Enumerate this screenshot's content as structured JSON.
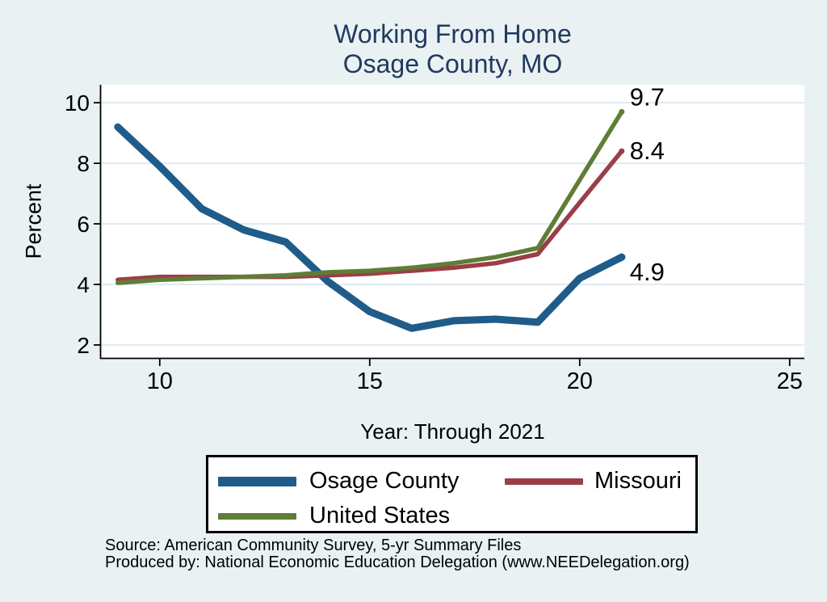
{
  "chart_data": {
    "type": "line",
    "title_line1": "Working From Home",
    "title_line2": "Osage County, MO",
    "xlabel": "Year: Through 2021",
    "ylabel": "Percent",
    "x": [
      9,
      10,
      11,
      12,
      13,
      14,
      15,
      16,
      17,
      18,
      19,
      20,
      21
    ],
    "series": [
      {
        "name": "Osage County",
        "color": "#1f5c8a",
        "stroke_width": 9,
        "end_label": "4.9",
        "values": [
          9.2,
          7.9,
          6.5,
          5.8,
          5.4,
          4.1,
          3.1,
          2.55,
          2.8,
          2.85,
          2.75,
          4.2,
          4.9
        ]
      },
      {
        "name": "Missouri",
        "color": "#9a3e48",
        "stroke_width": 5.5,
        "end_label": "8.4",
        "values": [
          4.15,
          4.25,
          4.25,
          4.25,
          4.25,
          4.3,
          4.35,
          4.45,
          4.55,
          4.7,
          5.0,
          6.7,
          8.4
        ]
      },
      {
        "name": "United States",
        "color": "#5f7d36",
        "stroke_width": 5.5,
        "end_label": "9.7",
        "values": [
          4.05,
          4.15,
          4.2,
          4.25,
          4.3,
          4.4,
          4.45,
          4.55,
          4.7,
          4.9,
          5.2,
          7.45,
          9.7
        ]
      }
    ],
    "x_ticks": [
      "10",
      "15",
      "20",
      "25"
    ],
    "x_tick_values": [
      10,
      15,
      20,
      25
    ],
    "y_ticks": [
      "2",
      "4",
      "6",
      "8",
      "10"
    ],
    "y_tick_values": [
      2,
      4,
      6,
      8,
      10
    ],
    "xlim": [
      8.6,
      25.35
    ],
    "ylim": [
      1.57,
      10.59
    ],
    "grid": true,
    "legend_position": "bottom"
  },
  "legend": {
    "items": [
      {
        "label": "Osage County"
      },
      {
        "label": "Missouri"
      },
      {
        "label": "United States"
      }
    ]
  },
  "footer": {
    "line1": "Source: American Community Survey, 5-yr Summary Files",
    "line2": "Produced by: National Economic Education Delegation (www.NEEDelegation.org)"
  },
  "colors": {
    "background": "#e9f1f3",
    "plot_background": "#ffffff",
    "gridline": "#e0ebf2",
    "axis": "#000000",
    "title": "#21395e"
  }
}
